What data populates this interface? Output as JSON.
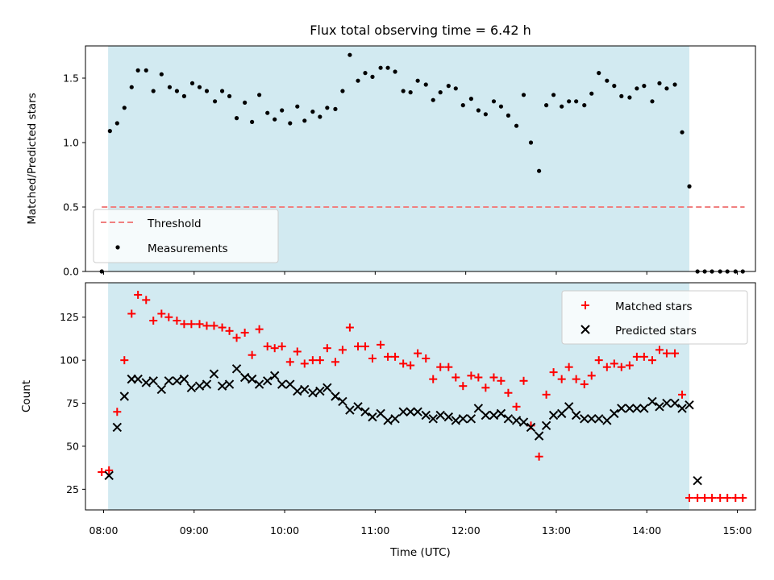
{
  "chart_data": [
    {
      "type": "scatter",
      "title": "Flux total observing time = 6.42 h",
      "xlabel": "",
      "ylabel": "Matched/Predicted stars",
      "ylim": [
        0,
        1.75
      ],
      "yticks": [
        0.0,
        0.5,
        1.0,
        1.5
      ],
      "ytick_labels": [
        "0.0",
        "0.5",
        "1.0",
        "1.5"
      ],
      "xlim": [
        7.8,
        15.2
      ],
      "shaded_span_hours": [
        8.05,
        14.47
      ],
      "shaded_color": "#add8e6",
      "legend_location": "lower-left",
      "threshold": {
        "name": "Threshold",
        "value": 0.5,
        "x_range": [
          7.98,
          15.08
        ],
        "color": "#f08080"
      },
      "series": [
        {
          "name": "Measurements",
          "color": "#000000",
          "marker": "dot",
          "x": [
            7.98,
            8.07,
            8.15,
            8.23,
            8.31,
            8.38,
            8.47,
            8.55,
            8.64,
            8.73,
            8.81,
            8.89,
            8.98,
            9.06,
            9.14,
            9.23,
            9.31,
            9.39,
            9.47,
            9.56,
            9.64,
            9.72,
            9.81,
            9.89,
            9.97,
            10.06,
            10.14,
            10.22,
            10.31,
            10.39,
            10.47,
            10.56,
            10.64,
            10.72,
            10.81,
            10.89,
            10.97,
            11.06,
            11.14,
            11.22,
            11.31,
            11.39,
            11.47,
            11.56,
            11.64,
            11.72,
            11.81,
            11.89,
            11.97,
            12.06,
            12.14,
            12.22,
            12.31,
            12.39,
            12.47,
            12.56,
            12.64,
            12.72,
            12.81,
            12.89,
            12.97,
            13.06,
            13.14,
            13.22,
            13.31,
            13.39,
            13.47,
            13.56,
            13.64,
            13.72,
            13.81,
            13.89,
            13.97,
            14.06,
            14.14,
            14.22,
            14.31,
            14.39,
            14.47,
            14.56,
            14.64,
            14.72,
            14.81,
            14.89,
            14.98,
            15.06
          ],
          "y": [
            0.0,
            1.09,
            1.15,
            1.27,
            1.43,
            1.56,
            1.56,
            1.4,
            1.53,
            1.43,
            1.4,
            1.36,
            1.46,
            1.43,
            1.4,
            1.32,
            1.4,
            1.36,
            1.19,
            1.31,
            1.16,
            1.37,
            1.23,
            1.18,
            1.25,
            1.15,
            1.28,
            1.17,
            1.24,
            1.2,
            1.27,
            1.26,
            1.4,
            1.68,
            1.48,
            1.54,
            1.51,
            1.58,
            1.58,
            1.55,
            1.4,
            1.39,
            1.48,
            1.45,
            1.33,
            1.39,
            1.44,
            1.42,
            1.29,
            1.34,
            1.25,
            1.22,
            1.32,
            1.28,
            1.21,
            1.13,
            1.37,
            1.0,
            0.78,
            1.29,
            1.37,
            1.28,
            1.32,
            1.32,
            1.29,
            1.38,
            1.54,
            1.48,
            1.44,
            1.36,
            1.35,
            1.42,
            1.44,
            1.32,
            1.46,
            1.42,
            1.45,
            1.08,
            0.66,
            0.0,
            0.0,
            0.0,
            0.0,
            0.0,
            0.0,
            0.0
          ]
        }
      ]
    },
    {
      "type": "scatter",
      "title": "",
      "xlabel": "Time (UTC)",
      "ylabel": "Count",
      "ylim": [
        13,
        145
      ],
      "yticks": [
        25,
        50,
        75,
        100,
        125
      ],
      "ytick_labels": [
        "25",
        "50",
        "75",
        "100",
        "125"
      ],
      "xlim": [
        7.8,
        15.2
      ],
      "xticks": [
        8,
        9,
        10,
        11,
        12,
        13,
        14,
        15
      ],
      "xtick_labels": [
        "08:00",
        "09:00",
        "10:00",
        "11:00",
        "12:00",
        "13:00",
        "14:00",
        "15:00"
      ],
      "shaded_span_hours": [
        8.05,
        14.47
      ],
      "shaded_color": "#add8e6",
      "legend_location": "upper-right",
      "series": [
        {
          "name": "Matched stars",
          "color": "#ff0000",
          "marker": "plus",
          "x": [
            7.98,
            8.06,
            8.15,
            8.23,
            8.31,
            8.38,
            8.47,
            8.55,
            8.64,
            8.72,
            8.81,
            8.89,
            8.97,
            9.06,
            9.14,
            9.22,
            9.31,
            9.39,
            9.47,
            9.56,
            9.64,
            9.72,
            9.81,
            9.89,
            9.97,
            10.06,
            10.14,
            10.22,
            10.31,
            10.39,
            10.47,
            10.56,
            10.64,
            10.72,
            10.81,
            10.89,
            10.97,
            11.06,
            11.14,
            11.22,
            11.31,
            11.39,
            11.47,
            11.56,
            11.64,
            11.72,
            11.81,
            11.89,
            11.97,
            12.06,
            12.14,
            12.22,
            12.31,
            12.39,
            12.47,
            12.56,
            12.64,
            12.72,
            12.81,
            12.89,
            12.97,
            13.06,
            13.14,
            13.22,
            13.31,
            13.39,
            13.47,
            13.56,
            13.64,
            13.72,
            13.81,
            13.89,
            13.97,
            14.06,
            14.14,
            14.22,
            14.31,
            14.39,
            14.47,
            14.56,
            14.64,
            14.72,
            14.81,
            14.89,
            14.98,
            15.06
          ],
          "y": [
            35,
            36,
            70,
            100,
            127,
            138,
            135,
            123,
            127,
            125,
            123,
            121,
            121,
            121,
            120,
            120,
            119,
            117,
            113,
            116,
            103,
            118,
            108,
            107,
            108,
            99,
            105,
            98,
            100,
            100,
            107,
            99,
            106,
            119,
            108,
            108,
            101,
            109,
            102,
            102,
            98,
            97,
            104,
            101,
            89,
            96,
            96,
            90,
            85,
            91,
            90,
            84,
            90,
            88,
            81,
            73,
            88,
            62,
            44,
            80,
            93,
            89,
            96,
            89,
            86,
            91,
            100,
            96,
            98,
            96,
            97,
            102,
            102,
            100,
            106,
            104,
            104,
            80,
            20,
            20,
            20,
            20,
            20,
            20,
            20,
            20
          ]
        },
        {
          "name": "Predicted stars",
          "color": "#000000",
          "marker": "x",
          "x": [
            8.06,
            8.15,
            8.23,
            8.31,
            8.38,
            8.47,
            8.55,
            8.64,
            8.72,
            8.81,
            8.89,
            8.97,
            9.06,
            9.14,
            9.22,
            9.31,
            9.39,
            9.47,
            9.56,
            9.64,
            9.72,
            9.81,
            9.89,
            9.97,
            10.06,
            10.14,
            10.22,
            10.31,
            10.39,
            10.47,
            10.56,
            10.64,
            10.72,
            10.81,
            10.89,
            10.97,
            11.06,
            11.14,
            11.22,
            11.31,
            11.39,
            11.47,
            11.56,
            11.64,
            11.72,
            11.81,
            11.89,
            11.97,
            12.06,
            12.14,
            12.22,
            12.31,
            12.39,
            12.47,
            12.56,
            12.64,
            12.72,
            12.81,
            12.89,
            12.97,
            13.06,
            13.14,
            13.22,
            13.31,
            13.39,
            13.47,
            13.56,
            13.64,
            13.72,
            13.81,
            13.89,
            13.97,
            14.06,
            14.14,
            14.22,
            14.31,
            14.39,
            14.47,
            14.56
          ],
          "y": [
            33,
            61,
            79,
            89,
            89,
            87,
            88,
            83,
            88,
            88,
            89,
            84,
            85,
            86,
            92,
            85,
            86,
            95,
            90,
            89,
            86,
            88,
            91,
            86,
            86,
            82,
            83,
            81,
            82,
            84,
            79,
            76,
            71,
            73,
            70,
            67,
            69,
            65,
            66,
            70,
            70,
            70,
            68,
            66,
            68,
            67,
            65,
            66,
            66,
            72,
            68,
            68,
            69,
            66,
            65,
            64,
            61,
            56,
            62,
            68,
            69,
            73,
            68,
            66,
            66,
            66,
            65,
            69,
            72,
            72,
            72,
            72,
            76,
            73,
            75,
            75,
            72,
            74,
            30
          ]
        }
      ]
    }
  ]
}
